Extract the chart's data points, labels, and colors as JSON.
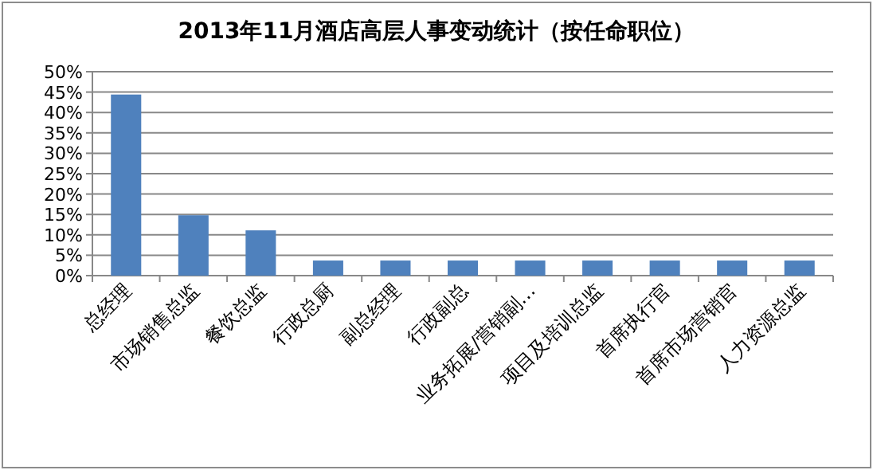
{
  "chart_data": {
    "type": "bar",
    "title": "2013年11月酒店高层人事变动统计（按任命职位）",
    "categories": [
      "总经理",
      "市场销售总监",
      "餐饮总监",
      "行政总厨",
      "副总经理",
      "行政副总",
      "业务拓展/营销副…",
      "项目及培训总监",
      "首席执行官",
      "首席市场营销官",
      "人力资源总监"
    ],
    "values": [
      44.4,
      14.8,
      11.1,
      3.7,
      3.7,
      3.7,
      3.7,
      3.7,
      3.7,
      3.7,
      3.7
    ],
    "color": "#4f81bd",
    "ylim": [
      0,
      50
    ],
    "yticks": [
      {
        "value": 0,
        "label": "0%"
      },
      {
        "value": 5,
        "label": "5%"
      },
      {
        "value": 10,
        "label": "10%"
      },
      {
        "value": 15,
        "label": "15%"
      },
      {
        "value": 20,
        "label": "20%"
      },
      {
        "value": 25,
        "label": "25%"
      },
      {
        "value": 30,
        "label": "30%"
      },
      {
        "value": 35,
        "label": "35%"
      },
      {
        "value": 40,
        "label": "40%"
      },
      {
        "value": 45,
        "label": "45%"
      },
      {
        "value": 50,
        "label": "50%"
      }
    ],
    "grid": "y"
  }
}
